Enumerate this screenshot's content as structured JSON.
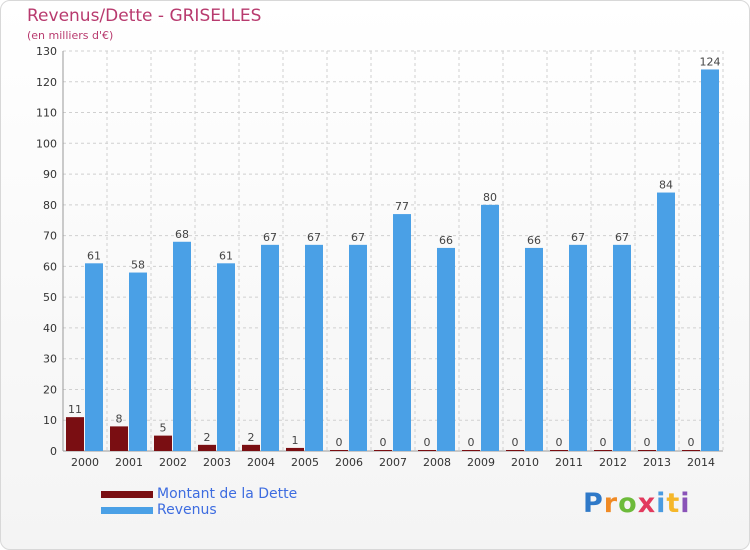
{
  "chart_data": {
    "type": "bar",
    "title": "Revenus/Dette - GRISELLES",
    "subtitle": "(en milliers d'€)",
    "categories": [
      "2000",
      "2001",
      "2002",
      "2003",
      "2004",
      "2005",
      "2006",
      "2007",
      "2008",
      "2009",
      "2010",
      "2011",
      "2012",
      "2013",
      "2014"
    ],
    "series": [
      {
        "name": "Montant de la Dette",
        "color": "#7a0e12",
        "values": [
          11,
          8,
          5,
          2,
          2,
          1,
          0,
          0,
          0,
          0,
          0,
          0,
          0,
          0,
          0
        ]
      },
      {
        "name": "Revenus",
        "color": "#4aa0e6",
        "values": [
          61,
          58,
          68,
          61,
          67,
          67,
          67,
          77,
          66,
          80,
          66,
          67,
          67,
          84,
          124
        ]
      }
    ],
    "ylim": [
      0,
      130
    ],
    "yticks": [
      0,
      10,
      20,
      30,
      40,
      50,
      60,
      70,
      80,
      90,
      100,
      110,
      120,
      130
    ],
    "grid": true,
    "legend": "bottom-left"
  },
  "brand": {
    "letters": [
      "P",
      "r",
      "o",
      "x",
      "i",
      "t",
      "i"
    ]
  }
}
